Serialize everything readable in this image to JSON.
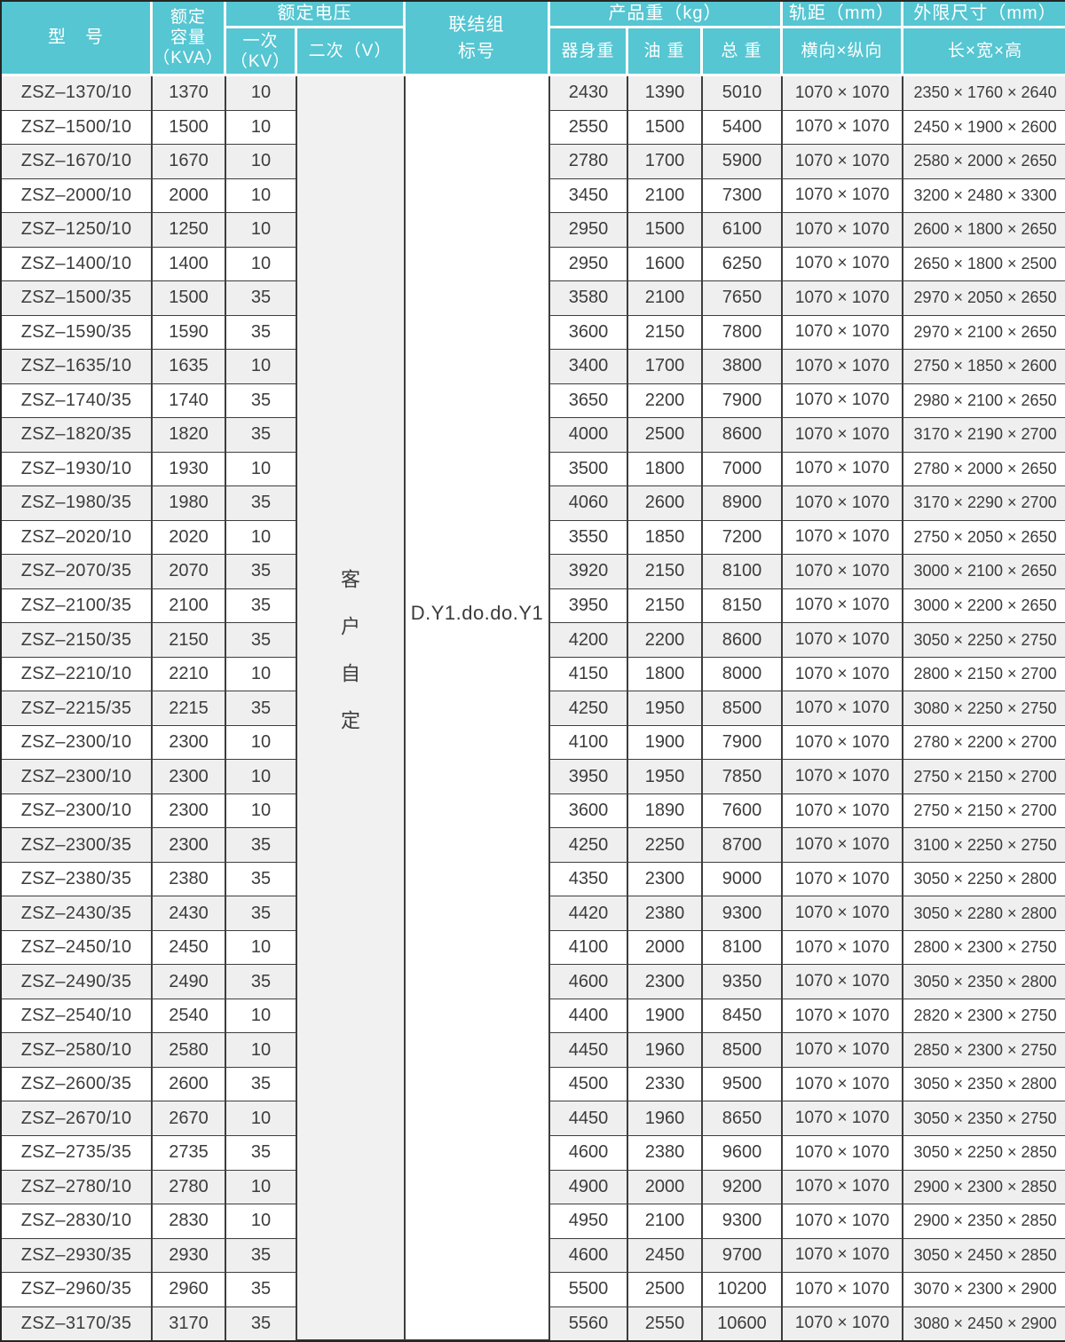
{
  "header": {
    "model": "型　号",
    "capacity": "额定\n容量\n（KVA）",
    "voltage": "额定电压",
    "primary": "一次\n（KV）",
    "secondary": "二次（V）",
    "connection": "联结组\n标号",
    "weight": "产品重（kg）",
    "body_weight": "器身重",
    "oil_weight": "油 重",
    "total_weight": "总 重",
    "gauge": "轨距（mm）",
    "gauge_sub": "横向×纵向",
    "dims": "外限尺寸（mm）",
    "dims_sub": "长×宽×高"
  },
  "merged": {
    "secondary_voltage": "客户自定",
    "connection_symbol": "D.Y1.do.do.Y1"
  },
  "colors": {
    "header_bg": "#55c6d2",
    "row_alt": "#efefef",
    "border_dark": "#3e3e3e",
    "header_text": "#ffffff",
    "body_text": "#3c3c3c"
  },
  "rows": [
    {
      "model": "ZSZ–1370/10",
      "kva": "1370",
      "kv": "10",
      "body_weight": "2430",
      "oil_weight": "1390",
      "total_weight": "5010",
      "gauge": "1070 × 1070",
      "dims": "2350 × 1760 × 2640"
    },
    {
      "model": "ZSZ–1500/10",
      "kva": "1500",
      "kv": "10",
      "body_weight": "2550",
      "oil_weight": "1500",
      "total_weight": "5400",
      "gauge": "1070 × 1070",
      "dims": "2450 × 1900 × 2600"
    },
    {
      "model": "ZSZ–1670/10",
      "kva": "1670",
      "kv": "10",
      "body_weight": "2780",
      "oil_weight": "1700",
      "total_weight": "5900",
      "gauge": "1070 × 1070",
      "dims": "2580 × 2000 × 2650"
    },
    {
      "model": "ZSZ–2000/10",
      "kva": "2000",
      "kv": "10",
      "body_weight": "3450",
      "oil_weight": "2100",
      "total_weight": "7300",
      "gauge": "1070 × 1070",
      "dims": "3200 × 2480 × 3300"
    },
    {
      "model": "ZSZ–1250/10",
      "kva": "1250",
      "kv": "10",
      "body_weight": "2950",
      "oil_weight": "1500",
      "total_weight": "6100",
      "gauge": "1070 × 1070",
      "dims": "2600 × 1800 × 2650"
    },
    {
      "model": "ZSZ–1400/10",
      "kva": "1400",
      "kv": "10",
      "body_weight": "2950",
      "oil_weight": "1600",
      "total_weight": "6250",
      "gauge": "1070 × 1070",
      "dims": "2650 × 1800 × 2500"
    },
    {
      "model": "ZSZ–1500/35",
      "kva": "1500",
      "kv": "35",
      "body_weight": "3580",
      "oil_weight": "2100",
      "total_weight": "7650",
      "gauge": "1070 × 1070",
      "dims": "2970 × 2050 × 2650"
    },
    {
      "model": "ZSZ–1590/35",
      "kva": "1590",
      "kv": "35",
      "body_weight": "3600",
      "oil_weight": "2150",
      "total_weight": "7800",
      "gauge": "1070 × 1070",
      "dims": "2970 × 2100 × 2650"
    },
    {
      "model": "ZSZ–1635/10",
      "kva": "1635",
      "kv": "10",
      "body_weight": "3400",
      "oil_weight": "1700",
      "total_weight": "3800",
      "gauge": "1070 × 1070",
      "dims": "2750 × 1850 × 2600"
    },
    {
      "model": "ZSZ–1740/35",
      "kva": "1740",
      "kv": "35",
      "body_weight": "3650",
      "oil_weight": "2200",
      "total_weight": "7900",
      "gauge": "1070 × 1070",
      "dims": "2980 × 2100 × 2650"
    },
    {
      "model": "ZSZ–1820/35",
      "kva": "1820",
      "kv": "35",
      "body_weight": "4000",
      "oil_weight": "2500",
      "total_weight": "8600",
      "gauge": "1070 × 1070",
      "dims": "3170 × 2190 × 2700"
    },
    {
      "model": "ZSZ–1930/10",
      "kva": "1930",
      "kv": "10",
      "body_weight": "3500",
      "oil_weight": "1800",
      "total_weight": "7000",
      "gauge": "1070 × 1070",
      "dims": "2780 × 2000 × 2650"
    },
    {
      "model": "ZSZ–1980/35",
      "kva": "1980",
      "kv": "35",
      "body_weight": "4060",
      "oil_weight": "2600",
      "total_weight": "8900",
      "gauge": "1070 × 1070",
      "dims": "3170 × 2290 × 2700"
    },
    {
      "model": "ZSZ–2020/10",
      "kva": "2020",
      "kv": "10",
      "body_weight": "3550",
      "oil_weight": "1850",
      "total_weight": "7200",
      "gauge": "1070 × 1070",
      "dims": "2750 × 2050 × 2650"
    },
    {
      "model": "ZSZ–2070/35",
      "kva": "2070",
      "kv": "35",
      "body_weight": "3920",
      "oil_weight": "2150",
      "total_weight": "8100",
      "gauge": "1070 × 1070",
      "dims": "3000 × 2100 × 2650"
    },
    {
      "model": "ZSZ–2100/35",
      "kva": "2100",
      "kv": "35",
      "body_weight": "3950",
      "oil_weight": "2150",
      "total_weight": "8150",
      "gauge": "1070 × 1070",
      "dims": "3000 × 2200 × 2650"
    },
    {
      "model": "ZSZ–2150/35",
      "kva": "2150",
      "kv": "35",
      "body_weight": "4200",
      "oil_weight": "2200",
      "total_weight": "8600",
      "gauge": "1070 × 1070",
      "dims": "3050 × 2250 × 2750"
    },
    {
      "model": "ZSZ–2210/10",
      "kva": "2210",
      "kv": "10",
      "body_weight": "4150",
      "oil_weight": "1800",
      "total_weight": "8000",
      "gauge": "1070 × 1070",
      "dims": "2800 × 2150 × 2700"
    },
    {
      "model": "ZSZ–2215/35",
      "kva": "2215",
      "kv": "35",
      "body_weight": "4250",
      "oil_weight": "1950",
      "total_weight": "8500",
      "gauge": "1070 × 1070",
      "dims": "3080 × 2250 × 2750"
    },
    {
      "model": "ZSZ–2300/10",
      "kva": "2300",
      "kv": "10",
      "body_weight": "4100",
      "oil_weight": "1900",
      "total_weight": "7900",
      "gauge": "1070 × 1070",
      "dims": "2780 × 2200 × 2700"
    },
    {
      "model": "ZSZ–2300/10",
      "kva": "2300",
      "kv": "10",
      "body_weight": "3950",
      "oil_weight": "1950",
      "total_weight": "7850",
      "gauge": "1070 × 1070",
      "dims": "2750 × 2150 × 2700"
    },
    {
      "model": "ZSZ–2300/10",
      "kva": "2300",
      "kv": "10",
      "body_weight": "3600",
      "oil_weight": "1890",
      "total_weight": "7600",
      "gauge": "1070 × 1070",
      "dims": "2750 × 2150 × 2700"
    },
    {
      "model": "ZSZ–2300/35",
      "kva": "2300",
      "kv": "35",
      "body_weight": "4250",
      "oil_weight": "2250",
      "total_weight": "8700",
      "gauge": "1070 × 1070",
      "dims": "3100 × 2250 × 2750"
    },
    {
      "model": "ZSZ–2380/35",
      "kva": "2380",
      "kv": "35",
      "body_weight": "4350",
      "oil_weight": "2300",
      "total_weight": "9000",
      "gauge": "1070 × 1070",
      "dims": "3050 × 2250 × 2800"
    },
    {
      "model": "ZSZ–2430/35",
      "kva": "2430",
      "kv": "35",
      "body_weight": "4420",
      "oil_weight": "2380",
      "total_weight": "9300",
      "gauge": "1070 × 1070",
      "dims": "3050 × 2280 × 2800"
    },
    {
      "model": "ZSZ–2450/10",
      "kva": "2450",
      "kv": "10",
      "body_weight": "4100",
      "oil_weight": "2000",
      "total_weight": "8100",
      "gauge": "1070 × 1070",
      "dims": "2800 × 2300 × 2750"
    },
    {
      "model": "ZSZ–2490/35",
      "kva": "2490",
      "kv": "35",
      "body_weight": "4600",
      "oil_weight": "2300",
      "total_weight": "9350",
      "gauge": "1070 × 1070",
      "dims": "3050 × 2350 × 2800"
    },
    {
      "model": "ZSZ–2540/10",
      "kva": "2540",
      "kv": "10",
      "body_weight": "4400",
      "oil_weight": "1900",
      "total_weight": "8450",
      "gauge": "1070 × 1070",
      "dims": "2820 × 2300 × 2750"
    },
    {
      "model": "ZSZ–2580/10",
      "kva": "2580",
      "kv": "10",
      "body_weight": "4450",
      "oil_weight": "1960",
      "total_weight": "8500",
      "gauge": "1070 × 1070",
      "dims": "2850 × 2300 × 2750"
    },
    {
      "model": "ZSZ–2600/35",
      "kva": "2600",
      "kv": "35",
      "body_weight": "4500",
      "oil_weight": "2330",
      "total_weight": "9500",
      "gauge": "1070 × 1070",
      "dims": "3050 × 2350 × 2800"
    },
    {
      "model": "ZSZ–2670/10",
      "kva": "2670",
      "kv": "10",
      "body_weight": "4450",
      "oil_weight": "1960",
      "total_weight": "8650",
      "gauge": "1070 × 1070",
      "dims": "3050 × 2350 × 2750"
    },
    {
      "model": "ZSZ–2735/35",
      "kva": "2735",
      "kv": "35",
      "body_weight": "4600",
      "oil_weight": "2380",
      "total_weight": "9600",
      "gauge": "1070 × 1070",
      "dims": "3050 × 2250 × 2850"
    },
    {
      "model": "ZSZ–2780/10",
      "kva": "2780",
      "kv": "10",
      "body_weight": "4900",
      "oil_weight": "2000",
      "total_weight": "9200",
      "gauge": "1070 × 1070",
      "dims": "2900 × 2300 × 2850"
    },
    {
      "model": "ZSZ–2830/10",
      "kva": "2830",
      "kv": "10",
      "body_weight": "4950",
      "oil_weight": "2100",
      "total_weight": "9300",
      "gauge": "1070 × 1070",
      "dims": "2900 × 2350 × 2850"
    },
    {
      "model": "ZSZ–2930/35",
      "kva": "2930",
      "kv": "35",
      "body_weight": "4600",
      "oil_weight": "2450",
      "total_weight": "9700",
      "gauge": "1070 × 1070",
      "dims": "3050 × 2450 × 2850"
    },
    {
      "model": "ZSZ–2960/35",
      "kva": "2960",
      "kv": "35",
      "body_weight": "5500",
      "oil_weight": "2500",
      "total_weight": "10200",
      "gauge": "1070 × 1070",
      "dims": "3070 × 2300 × 2900"
    },
    {
      "model": "ZSZ–3170/35",
      "kva": "3170",
      "kv": "35",
      "body_weight": "5560",
      "oil_weight": "2550",
      "total_weight": "10600",
      "gauge": "1070 × 1070",
      "dims": "3080 × 2450 × 2900"
    }
  ]
}
